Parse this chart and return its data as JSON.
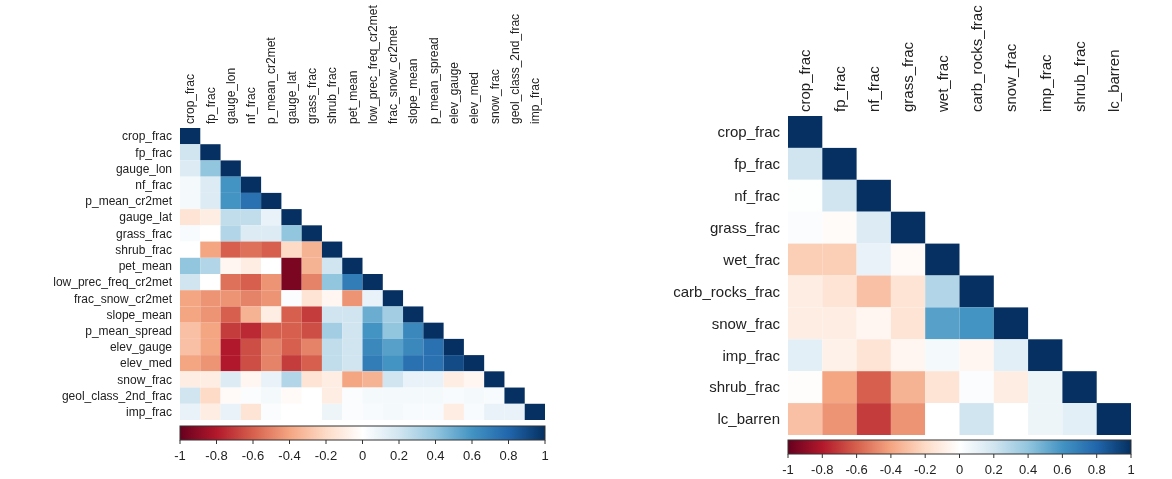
{
  "chart_data": [
    {
      "type": "heatmap",
      "categories": [
        "crop_frac",
        "fp_frac",
        "gauge_lon",
        "nf_frac",
        "p_mean_cr2met",
        "gauge_lat",
        "grass_frac",
        "shrub_frac",
        "pet_mean",
        "low_prec_freq_cr2met",
        "frac_snow_cr2met",
        "slope_mean",
        "p_mean_spread",
        "elev_gauge",
        "elev_med",
        "snow_frac",
        "geol_class_2nd_frac",
        "imp_frac"
      ],
      "y_categories": [
        "crop_frac",
        "fp_frac",
        "gauge_lon",
        "nf_frac",
        "p_mean_cr2met",
        "gauge_lat",
        "grass_frac",
        "shrub_frac",
        "pet_mean",
        "low_prec_freq_cr2met",
        "frac_snow_cr2met",
        "slope_mean",
        "p_mean_spread",
        "elev_gauge",
        "elev_med",
        "snow_frac",
        "geol_class_2nd_frac",
        "imp_frac"
      ],
      "cells": [
        [
          1,
          null,
          null,
          null,
          null,
          null,
          null,
          null,
          null,
          null,
          null,
          null,
          null,
          null,
          null,
          null,
          null,
          null
        ],
        [
          0.2,
          1,
          null,
          null,
          null,
          null,
          null,
          null,
          null,
          null,
          null,
          null,
          null,
          null,
          null,
          null,
          null,
          null
        ],
        [
          0.15,
          0.4,
          1,
          null,
          null,
          null,
          null,
          null,
          null,
          null,
          null,
          null,
          null,
          null,
          null,
          null,
          null,
          null
        ],
        [
          0.05,
          0.15,
          0.6,
          1,
          null,
          null,
          null,
          null,
          null,
          null,
          null,
          null,
          null,
          null,
          null,
          null,
          null,
          null
        ],
        [
          0.05,
          0.15,
          0.6,
          0.75,
          1,
          null,
          null,
          null,
          null,
          null,
          null,
          null,
          null,
          null,
          null,
          null,
          null,
          null
        ],
        [
          -0.15,
          -0.1,
          0.25,
          0.25,
          0.1,
          1,
          null,
          null,
          null,
          null,
          null,
          null,
          null,
          null,
          null,
          null,
          null,
          null
        ],
        [
          0.03,
          0,
          0.3,
          0.15,
          0.15,
          0.4,
          1,
          null,
          null,
          null,
          null,
          null,
          null,
          null,
          null,
          null,
          null,
          null
        ],
        [
          0,
          -0.4,
          -0.6,
          -0.55,
          -0.6,
          -0.2,
          -0.35,
          1,
          null,
          null,
          null,
          null,
          null,
          null,
          null,
          null,
          null,
          null
        ],
        [
          0.4,
          0.3,
          -0.05,
          -0.1,
          0,
          -0.95,
          -0.35,
          0.2,
          1,
          null,
          null,
          null,
          null,
          null,
          null,
          null,
          null,
          null
        ],
        [
          0.2,
          0,
          -0.55,
          -0.6,
          -0.45,
          -0.95,
          -0.5,
          0.4,
          0.7,
          1,
          null,
          null,
          null,
          null,
          null,
          null,
          null,
          null
        ],
        [
          -0.4,
          -0.45,
          -0.45,
          -0.5,
          -0.45,
          0.02,
          -0.15,
          -0.05,
          -0.45,
          0.1,
          1,
          null,
          null,
          null,
          null,
          null,
          null,
          null
        ],
        [
          -0.4,
          -0.45,
          -0.6,
          -0.35,
          -0.1,
          -0.6,
          -0.7,
          0.2,
          0.2,
          0.5,
          0.35,
          1,
          null,
          null,
          null,
          null,
          null,
          null
        ],
        [
          -0.3,
          -0.4,
          -0.7,
          -0.75,
          -0.6,
          -0.6,
          -0.65,
          0.35,
          0.2,
          0.6,
          0.4,
          0.65,
          1,
          null,
          null,
          null,
          null,
          null
        ],
        [
          -0.3,
          -0.4,
          -0.8,
          -0.65,
          -0.5,
          -0.6,
          -0.5,
          0.25,
          0.2,
          0.65,
          0.55,
          0.65,
          0.75,
          1,
          null,
          null,
          null,
          null
        ],
        [
          -0.4,
          -0.45,
          -0.8,
          -0.65,
          -0.5,
          -0.7,
          -0.6,
          0.25,
          0.2,
          0.7,
          0.6,
          0.75,
          0.75,
          0.9,
          1,
          null,
          null,
          null
        ],
        [
          -0.1,
          -0.1,
          0.15,
          -0.05,
          0.1,
          0.3,
          -0.15,
          -0.1,
          -0.4,
          -0.35,
          0.2,
          0.1,
          0.1,
          -0.1,
          -0.05,
          1,
          null,
          null
        ],
        [
          0.2,
          -0.2,
          -0.03,
          0.02,
          0.05,
          -0.03,
          0,
          -0.1,
          0.02,
          0.05,
          0.05,
          0.05,
          0.05,
          0.03,
          0.05,
          0.03,
          1,
          null
        ],
        [
          0.1,
          -0.1,
          0.1,
          -0.15,
          0.02,
          0,
          0,
          0.08,
          0.02,
          0.03,
          0.05,
          0.03,
          0.03,
          -0.1,
          0.03,
          0.1,
          0.1,
          1
        ]
      ],
      "clim": [
        -1,
        1
      ],
      "cticks": [
        -1,
        -0.8,
        -0.6,
        -0.4,
        -0.2,
        0,
        0.2,
        0.4,
        0.6,
        0.8,
        1
      ]
    },
    {
      "type": "heatmap",
      "categories": [
        "crop_frac",
        "fp_frac",
        "nf_frac",
        "grass_frac",
        "wet_frac",
        "carb_rocks_frac",
        "snow_frac",
        "imp_frac",
        "shrub_frac",
        "lc_barren"
      ],
      "y_categories": [
        "crop_frac",
        "fp_frac",
        "nf_frac",
        "grass_frac",
        "wet_frac",
        "carb_rocks_frac",
        "snow_frac",
        "imp_frac",
        "shrub_frac",
        "lc_barren"
      ],
      "cells": [
        [
          1,
          null,
          null,
          null,
          null,
          null,
          null,
          null,
          null,
          null
        ],
        [
          0.2,
          1,
          null,
          null,
          null,
          null,
          null,
          null,
          null,
          null
        ],
        [
          0.01,
          0.2,
          1,
          null,
          null,
          null,
          null,
          null,
          null,
          null
        ],
        [
          0.02,
          -0.02,
          0.15,
          1,
          null,
          null,
          null,
          null,
          null,
          null
        ],
        [
          -0.25,
          -0.25,
          0.1,
          -0.03,
          1,
          null,
          null,
          null,
          null,
          null
        ],
        [
          -0.1,
          -0.15,
          -0.3,
          -0.15,
          0.3,
          1,
          null,
          null,
          null,
          null
        ],
        [
          -0.1,
          -0.1,
          -0.05,
          -0.15,
          0.55,
          0.6,
          1,
          null,
          null,
          null
        ],
        [
          0.12,
          -0.08,
          -0.15,
          -0.05,
          0.05,
          -0.05,
          0.12,
          1,
          null,
          null
        ],
        [
          -0.01,
          -0.4,
          -0.6,
          -0.35,
          -0.15,
          0.02,
          -0.1,
          0.08,
          1,
          null
        ],
        [
          -0.3,
          -0.45,
          -0.7,
          -0.45,
          0,
          0.2,
          0,
          0.08,
          0.12,
          1
        ]
      ],
      "clim": [
        -1,
        1
      ],
      "cticks": [
        -1,
        -0.8,
        -0.6,
        -0.4,
        -0.2,
        0,
        0.2,
        0.4,
        0.6,
        0.8,
        1
      ]
    }
  ]
}
